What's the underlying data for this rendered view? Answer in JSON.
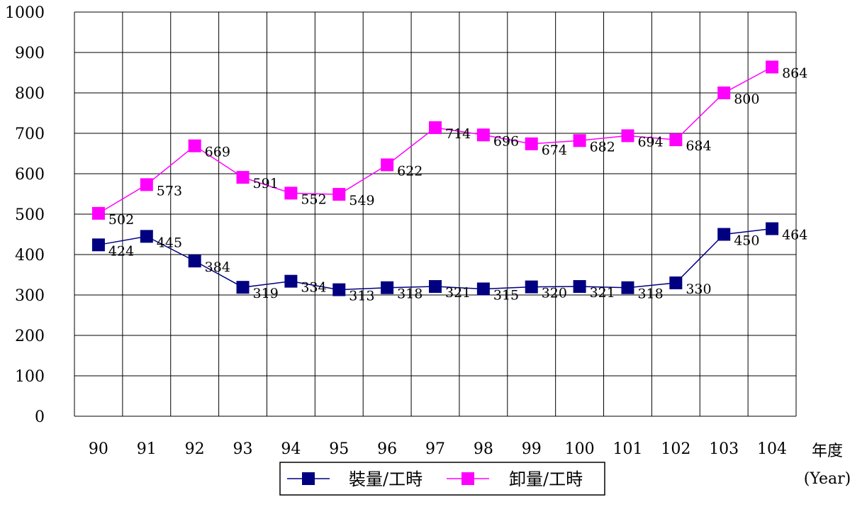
{
  "chart_data": {
    "type": "line",
    "categories": [
      "90",
      "91",
      "92",
      "93",
      "94",
      "95",
      "96",
      "97",
      "98",
      "99",
      "100",
      "101",
      "102",
      "103",
      "104"
    ],
    "series": [
      {
        "name": "裝量/工時",
        "color": "#000080",
        "values": [
          424,
          445,
          384,
          319,
          334,
          313,
          318,
          321,
          315,
          320,
          321,
          318,
          330,
          450,
          464
        ]
      },
      {
        "name": "卸量/工時",
        "color": "#ff00ff",
        "values": [
          502,
          573,
          669,
          591,
          552,
          549,
          622,
          714,
          696,
          674,
          682,
          694,
          684,
          800,
          864
        ]
      }
    ],
    "yticks": [
      "0",
      "100",
      "200",
      "300",
      "400",
      "500",
      "600",
      "700",
      "800",
      "900",
      "1000"
    ],
    "ylim": [
      0,
      1000
    ],
    "xlabel": "年度",
    "xlabel_sub": "(Year)",
    "ylabel": "",
    "title": "",
    "grid": true,
    "legend_position": "bottom"
  }
}
